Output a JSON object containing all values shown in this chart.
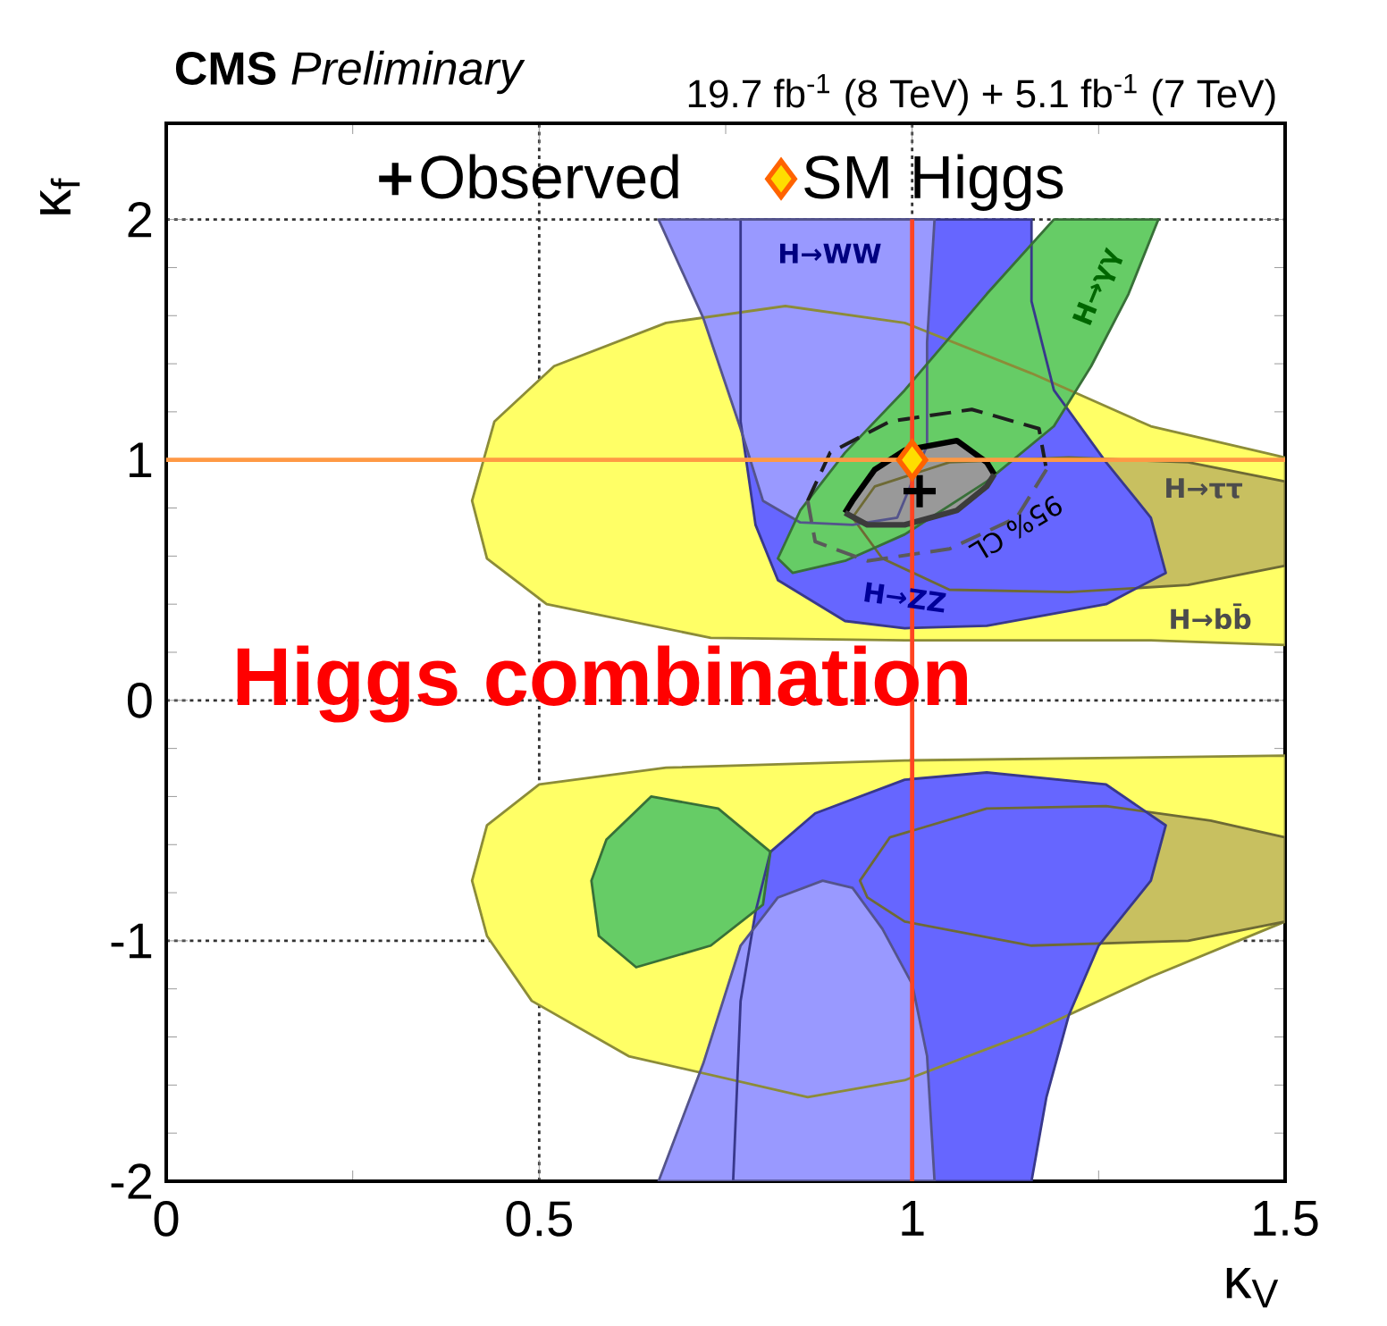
{
  "chart_data": {
    "type": "area",
    "title": "**CMS** *Preliminary*",
    "subtitle": "19.7 fb$^{-1}$ (8 TeV) + 5.1 fb$^{-1}$ (7 TeV)",
    "xlabel": "κ$_{V}$",
    "ylabel": "κ$_{f}$",
    "xlim": [
      0,
      1.5
    ],
    "ylim": [
      -2,
      2.4
    ],
    "xticks": [
      0,
      0.5,
      1,
      1.5
    ],
    "yticks": [
      -2,
      -1,
      0,
      1,
      2
    ],
    "grid": true,
    "legend": "top",
    "series": [
      {
        "color": "#ffff66",
        "x": [
          0.41,
          0.44,
          0.52,
          0.67,
          0.83,
          0.99,
          1.16,
          1.32,
          1.5,
          1.5,
          1.32,
          0.99,
          0.73,
          0.51,
          0.43
        ],
        "values": [
          0.83,
          1.16,
          1.39,
          1.57,
          1.64,
          1.57,
          1.36,
          1.14,
          1.01,
          0.23,
          0.25,
          0.25,
          0.26,
          0.4,
          0.59
        ]
      },
      {
        "color": "#ffff66",
        "x": [
          1.5,
          0.99,
          0.67,
          0.5,
          0.43,
          0.41,
          0.43,
          0.49,
          0.62,
          0.86,
          0.99,
          1.16,
          1.32,
          1.5
        ],
        "values": [
          -0.23,
          -0.25,
          -0.28,
          -0.35,
          -0.52,
          -0.75,
          -0.98,
          -1.25,
          -1.48,
          -1.65,
          -1.58,
          -1.38,
          -1.15,
          -0.92
        ]
      },
      {
        "color": "#c8c060",
        "x": [
          0.92,
          0.95,
          1.05,
          1.21,
          1.37,
          1.5,
          1.5,
          1.37,
          1.21,
          1.05,
          0.96
        ],
        "values": [
          0.76,
          0.89,
          0.99,
          1.01,
          0.99,
          0.91,
          0.56,
          0.48,
          0.45,
          0.46,
          0.59
        ]
      },
      {
        "color": "#c8c060",
        "x": [
          0.93,
          0.97,
          1.1,
          1.26,
          1.4,
          1.5,
          1.5,
          1.37,
          1.16,
          0.99,
          0.94
        ],
        "values": [
          -0.75,
          -0.57,
          -0.45,
          -0.44,
          -0.5,
          -0.57,
          -0.92,
          -1.0,
          -1.02,
          -0.92,
          -0.82
        ]
      },
      {
        "color": "#6666ff",
        "x": [
          0.77,
          0.77,
          0.79,
          0.82,
          0.91,
          0.99,
          1.1,
          1.26,
          1.34,
          1.32,
          1.26,
          1.19,
          1.16,
          1.16
        ],
        "values": [
          2.0,
          1.16,
          0.73,
          0.5,
          0.33,
          0.3,
          0.31,
          0.4,
          0.53,
          0.76,
          0.99,
          1.29,
          1.66,
          2.0
        ]
      },
      {
        "color": "#6666ff",
        "x": [
          0.76,
          0.77,
          0.79,
          0.81,
          0.87,
          0.99,
          1.1,
          1.26,
          1.34,
          1.32,
          1.25,
          1.21,
          1.18,
          1.16
        ],
        "values": [
          -2.0,
          -1.25,
          -0.88,
          -0.63,
          -0.47,
          -0.33,
          -0.3,
          -0.35,
          -0.52,
          -0.75,
          -1.02,
          -1.31,
          -1.65,
          -2.0
        ]
      },
      {
        "color": "#9999ff",
        "x": [
          0.66,
          0.72,
          0.77,
          0.8,
          0.85,
          0.92,
          0.98,
          1.02,
          1.02,
          1.03
        ],
        "values": [
          2.0,
          1.59,
          1.13,
          0.83,
          0.74,
          0.73,
          0.76,
          1.06,
          1.49,
          2.0
        ]
      },
      {
        "color": "#9999ff",
        "x": [
          0.66,
          0.72,
          0.77,
          0.82,
          0.88,
          0.92,
          0.96,
          1.0,
          1.02,
          1.03
        ],
        "values": [
          -2.0,
          -1.51,
          -1.02,
          -0.82,
          -0.75,
          -0.78,
          -0.95,
          -1.18,
          -1.48,
          -2.0
        ]
      },
      {
        "color": "#66cc66",
        "x": [
          1.19,
          1.1,
          0.99,
          0.91,
          0.85,
          0.82,
          0.84,
          0.91,
          0.99,
          1.1,
          1.19,
          1.24,
          1.29,
          1.33
        ],
        "values": [
          2.0,
          1.69,
          1.29,
          1.03,
          0.79,
          0.59,
          0.53,
          0.58,
          0.69,
          0.91,
          1.14,
          1.39,
          1.69,
          2.0
        ]
      },
      {
        "color": "#66cc66",
        "x": [
          0.59,
          0.65,
          0.74,
          0.81,
          0.8,
          0.73,
          0.63,
          0.58,
          0.57
        ],
        "values": [
          -0.58,
          -0.4,
          -0.45,
          -0.63,
          -0.85,
          -1.02,
          -1.11,
          -0.98,
          -0.75
        ]
      },
      {
        "type": "line",
        "color": "#000000",
        "line_style": "solid",
        "x": [
          0.91,
          0.92,
          0.95,
          0.99,
          1.06,
          1.1,
          1.11
        ],
        "values": [
          0.78,
          0.83,
          0.96,
          1.04,
          1.08,
          0.99,
          0.94
        ],
        "lower": [
          0.78,
          0.76,
          0.73,
          0.73,
          0.79,
          0.89,
          0.94
        ],
        "upper": [
          0.78,
          0.83,
          0.96,
          1.04,
          1.08,
          0.99,
          0.94
        ]
      },
      {
        "type": "line",
        "color": "#3c3c3c",
        "line_style": "solid",
        "x": [
          0.91,
          0.94,
          0.99,
          1.06,
          1.1,
          1.11
        ],
        "values": [
          0.78,
          0.73,
          0.73,
          0.79,
          0.89,
          0.94
        ]
      },
      {
        "type": "line",
        "color": "#1e1e1e",
        "line_style": "dashed",
        "x": [
          0.86,
          0.89,
          0.97,
          1.08,
          1.17,
          1.18
        ],
        "values": [
          0.83,
          1.03,
          1.16,
          1.21,
          1.13,
          0.96
        ]
      },
      {
        "type": "line",
        "color": "#5a5a5a",
        "line_style": "dashed",
        "x": [
          0.86,
          0.87,
          0.94,
          1.05,
          1.14,
          1.18
        ],
        "values": [
          0.83,
          0.66,
          0.58,
          0.63,
          0.76,
          0.96
        ]
      },
      {
        "type": "scatter",
        "name": "Observed",
        "color": "#000000",
        "marker": "cross",
        "x": [
          1.01
        ],
        "values": [
          0.87
        ]
      },
      {
        "type": "scatter",
        "name": "SM Higgs",
        "color": "#ffdd00",
        "marker": "diamond",
        "x": [
          1.0
        ],
        "values": [
          1.0
        ]
      }
    ],
    "ref_lines": [
      {
        "axis": "x",
        "value": 1,
        "color": "#ff4422"
      },
      {
        "axis": "y",
        "value": 1,
        "color": "#ff9944"
      }
    ],
    "annotations": [
      "Higgs combination",
      "H→WW",
      "H→γγ",
      "H→ττ",
      "H→bb̄",
      "H→ZZ",
      "95% CL"
    ]
  }
}
